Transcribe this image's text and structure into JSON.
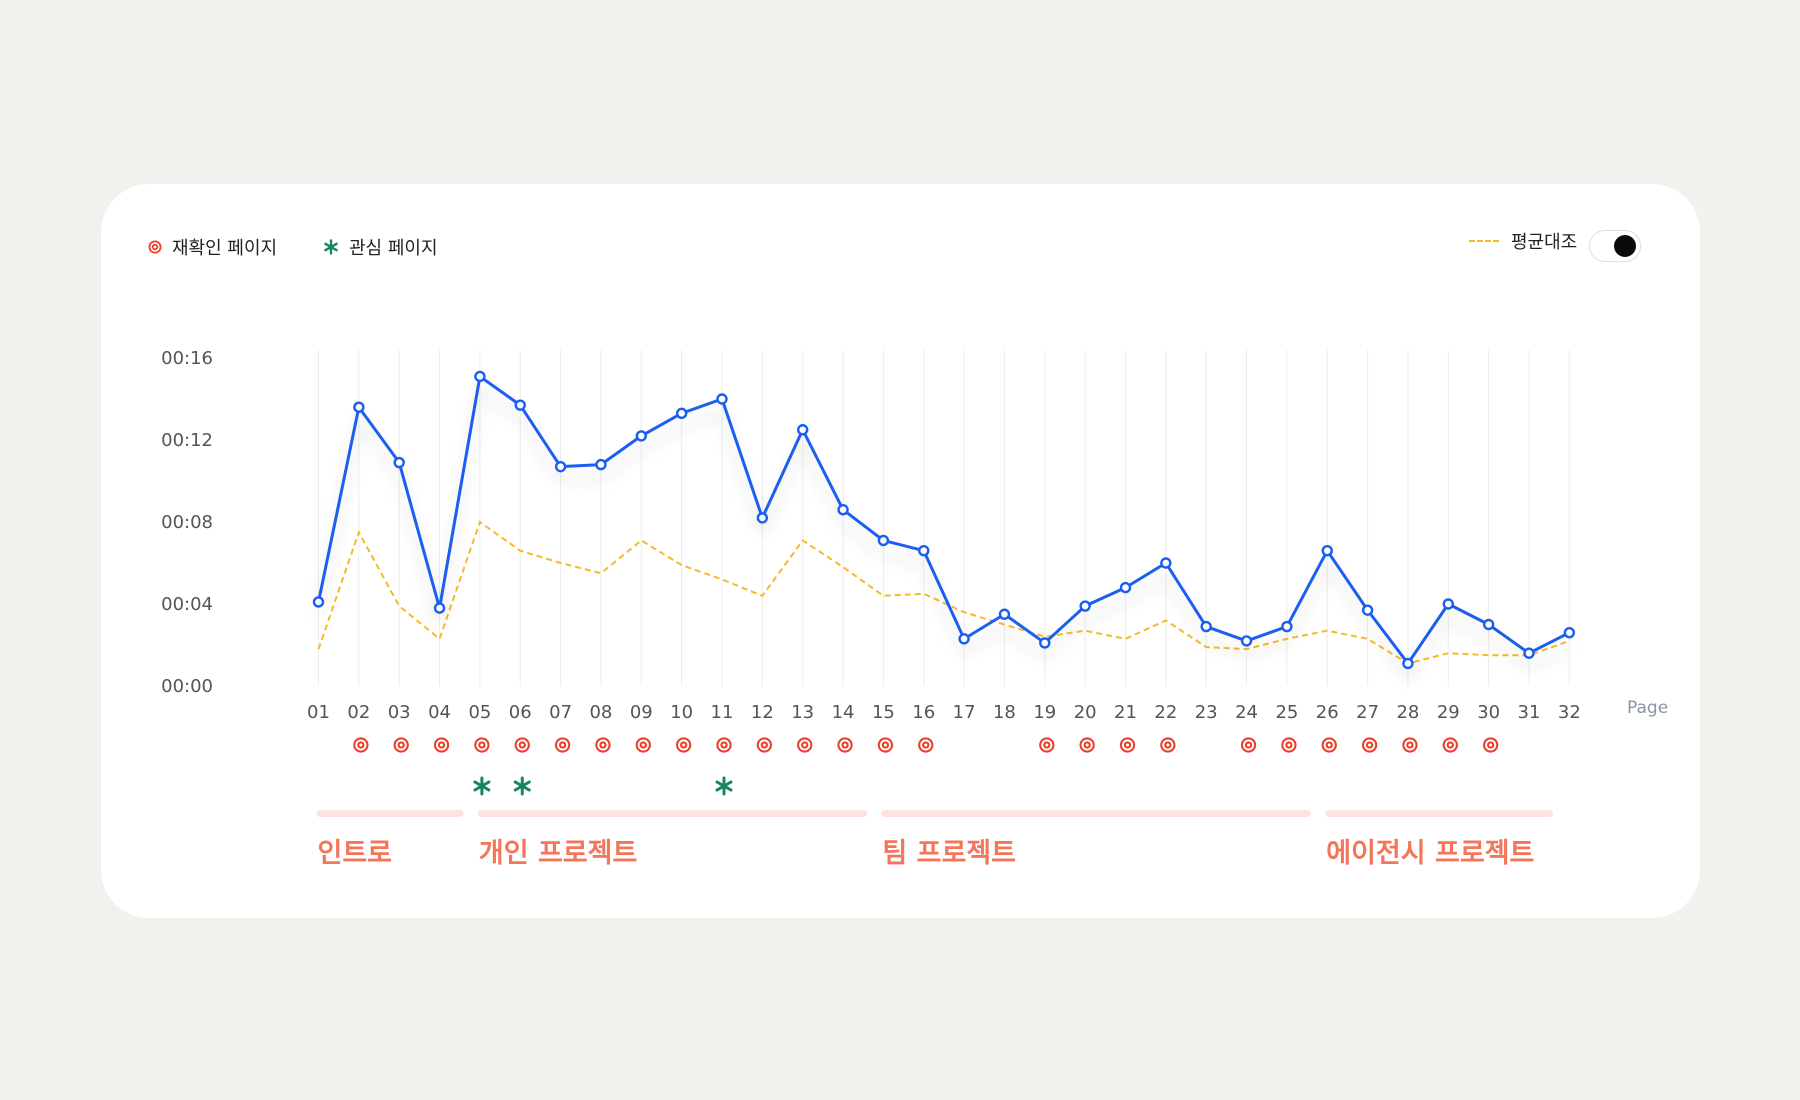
{
  "legend": {
    "revisit_label": "재확인 페이지",
    "interest_label": "관심 페이지",
    "average_label": "평균대조"
  },
  "colors": {
    "main_line": "#1a5ef0",
    "average_line": "#f7b928",
    "revisit_marker": "#e8412c",
    "interest_marker": "#15875a",
    "section_bar": "#fde2dd",
    "section_text": "#f3765a"
  },
  "toggle": {
    "checked": true
  },
  "chart_data": {
    "type": "line",
    "xlabel": "Page",
    "y_ticks": [
      "00:00",
      "00:04",
      "00:08",
      "00:12",
      "00:16"
    ],
    "ylim": [
      0,
      16
    ],
    "categories": [
      "01",
      "02",
      "03",
      "04",
      "05",
      "06",
      "07",
      "08",
      "09",
      "10",
      "11",
      "12",
      "13",
      "14",
      "15",
      "16",
      "17",
      "18",
      "19",
      "20",
      "21",
      "22",
      "23",
      "24",
      "25",
      "26",
      "27",
      "28",
      "29",
      "30",
      "31",
      "32"
    ],
    "series": [
      {
        "style": "solid",
        "values": [
          4.1,
          13.6,
          10.9,
          3.8,
          15.1,
          13.7,
          10.7,
          10.8,
          12.2,
          13.3,
          14.0,
          8.2,
          12.5,
          8.6,
          7.1,
          6.6,
          2.3,
          3.5,
          2.1,
          3.9,
          4.8,
          6.0,
          2.9,
          2.2,
          2.9,
          6.6,
          3.7,
          1.1,
          4.0,
          3.0,
          1.6,
          2.6
        ]
      },
      {
        "name": "평균대조",
        "style": "dashed",
        "values": [
          1.8,
          7.5,
          3.9,
          2.3,
          8.0,
          6.6,
          6.0,
          5.5,
          7.1,
          5.9,
          5.2,
          4.4,
          7.1,
          5.8,
          4.4,
          4.5,
          3.6,
          3.0,
          2.4,
          2.7,
          2.3,
          3.2,
          1.9,
          1.8,
          2.3,
          2.7,
          2.3,
          1.1,
          1.6,
          1.5,
          1.5,
          2.2
        ]
      }
    ],
    "revisit_pages": [
      "02",
      "03",
      "04",
      "05",
      "06",
      "07",
      "08",
      "09",
      "10",
      "11",
      "12",
      "13",
      "14",
      "15",
      "16",
      "19",
      "20",
      "21",
      "22",
      "24",
      "25",
      "26",
      "27",
      "28",
      "29",
      "30"
    ],
    "interest_pages": [
      "05",
      "06",
      "11"
    ],
    "sections": [
      {
        "label": "인트로",
        "start": "01",
        "end": "04"
      },
      {
        "label": "개인 프로젝트",
        "start": "05",
        "end": "14"
      },
      {
        "label": "팀 프로젝트",
        "start": "15",
        "end": "25"
      },
      {
        "label": "에이전시 프로젝트",
        "start": "26",
        "end": "31"
      }
    ],
    "grid": true
  }
}
